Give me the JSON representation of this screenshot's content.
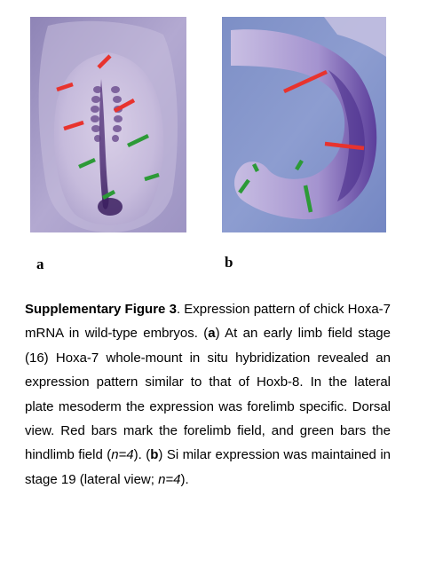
{
  "figure": {
    "panels": [
      {
        "id": "a",
        "label": "a",
        "view": "Dorsal view",
        "bar_colors": {
          "forelimb": "#e8332e",
          "hindlimb": "#2c9a37"
        }
      },
      {
        "id": "b",
        "label": "b",
        "view": "lateral view",
        "bar_colors": {
          "forelimb": "#e8332e",
          "hindlimb": "#2c9a37"
        }
      }
    ]
  },
  "caption": {
    "title": "Supplementary Figure 3",
    "s1": ". Expression pattern of chick Hoxa-7 mRNA in wild-type embryos. (",
    "a": "a",
    "s2": ") At an early limb field stage (16) Hoxa-7 whole-mount in situ hybridization revealed an expression pattern similar to that of Hoxb-8. In the lateral plate mesoderm the expression was forelimb specific. Dorsal view. Red bars mark the forelimb field, and green bars the hindlimb field (",
    "n1": "n=4",
    "s3": "). (",
    "b": "b",
    "s4": ") Si milar expression was maintained in stage 19 (lateral view; ",
    "n2": "n=4",
    "s5": ")."
  }
}
